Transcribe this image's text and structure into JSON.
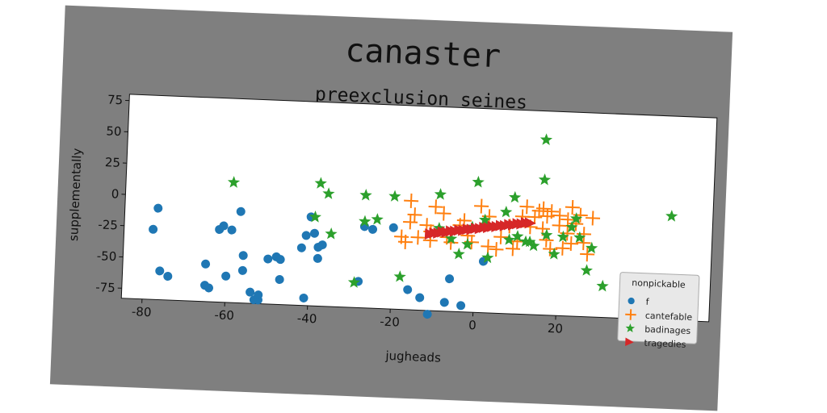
{
  "chart_data": {
    "type": "scatter",
    "title": "canaster",
    "subtitle": "preexclusion seines",
    "xlabel": "jugheads",
    "ylabel": "supplementally",
    "xlim": [
      -85,
      57
    ],
    "ylim": [
      -83,
      80
    ],
    "xticks": [
      -80,
      -60,
      -40,
      -20,
      0,
      20,
      40
    ],
    "yticks": [
      75,
      50,
      25,
      0,
      -25,
      -50,
      -75
    ],
    "grid": false,
    "legend": {
      "title": "nonpickable",
      "placement": "bottom-right"
    },
    "colors": {
      "f": "#1f77b4",
      "cantefable": "#ff7f0e",
      "badinages": "#2ca02c",
      "tragedies": "#d62728"
    },
    "series": [
      {
        "name": "f",
        "marker": "circle",
        "points": [
          [
            -77,
            -10
          ],
          [
            -78,
            -27
          ],
          [
            -76,
            -60
          ],
          [
            -74,
            -64
          ],
          [
            -65,
            -53
          ],
          [
            -65,
            -70
          ],
          [
            -64,
            -72
          ],
          [
            -62,
            -25
          ],
          [
            -61,
            -22
          ],
          [
            -60,
            -62
          ],
          [
            -59,
            -25
          ],
          [
            -57,
            -10
          ],
          [
            -56,
            -45
          ],
          [
            -56,
            -57
          ],
          [
            -54,
            -74
          ],
          [
            -53,
            -80
          ],
          [
            -52,
            -80
          ],
          [
            -52,
            -76
          ],
          [
            -50,
            -47
          ],
          [
            -48,
            -45
          ],
          [
            -47,
            -47
          ],
          [
            -47,
            -63
          ],
          [
            -42,
            -37
          ],
          [
            -41,
            -77
          ],
          [
            -41,
            -27
          ],
          [
            -40,
            -12
          ],
          [
            -39,
            -25
          ],
          [
            -38,
            -36
          ],
          [
            -38,
            -45
          ],
          [
            -37,
            -34
          ],
          [
            -28,
            -62
          ],
          [
            -27,
            -18
          ],
          [
            -25,
            -20
          ],
          [
            -20,
            -18
          ],
          [
            -16,
            -67
          ],
          [
            -13,
            -73
          ],
          [
            -11,
            -86
          ],
          [
            -7,
            -76
          ],
          [
            -6,
            -57
          ],
          [
            -3,
            -78
          ],
          [
            2,
            -42
          ]
        ]
      },
      {
        "name": "cantefable",
        "marker": "plus",
        "points": [
          [
            -12,
            -15
          ],
          [
            -14,
            -25
          ],
          [
            -11,
            -20
          ],
          [
            -11,
            -27
          ],
          [
            -8,
            -5
          ],
          [
            -7,
            -24
          ],
          [
            -6,
            -28
          ],
          [
            -4,
            -14
          ],
          [
            -3,
            -10
          ],
          [
            -2,
            -22
          ],
          [
            -1,
            -27
          ],
          [
            -18,
            -25
          ],
          [
            -17,
            -29
          ],
          [
            -16,
            -13
          ],
          [
            -15,
            -7
          ],
          [
            -16,
            4
          ],
          [
            -10,
            0
          ],
          [
            1,
            2
          ],
          [
            3,
            -6
          ],
          [
            3,
            -30
          ],
          [
            5,
            -32
          ],
          [
            6,
            -22
          ],
          [
            8,
            -13
          ],
          [
            9,
            -31
          ],
          [
            10,
            -25
          ],
          [
            11,
            -5
          ],
          [
            12,
            3
          ],
          [
            13,
            -13
          ],
          [
            14,
            -5
          ],
          [
            15,
            0
          ],
          [
            16,
            2
          ],
          [
            16,
            -14
          ],
          [
            17,
            -4
          ],
          [
            17,
            -23
          ],
          [
            18,
            -30
          ],
          [
            18,
            0
          ],
          [
            20,
            -3
          ],
          [
            20,
            -11
          ],
          [
            21,
            -29
          ],
          [
            22,
            -6
          ],
          [
            22,
            -17
          ],
          [
            23,
            -25
          ],
          [
            23,
            4
          ],
          [
            24,
            -9
          ],
          [
            25,
            -2
          ],
          [
            26,
            -17
          ],
          [
            26,
            -24
          ],
          [
            27,
            -33
          ],
          [
            28,
            -4
          ]
        ]
      },
      {
        "name": "badinages",
        "marker": "star",
        "points": [
          [
            -59,
            13
          ],
          [
            -38,
            15
          ],
          [
            -36,
            7
          ],
          [
            -39,
            -12
          ],
          [
            -35,
            -25
          ],
          [
            -29,
            -63
          ],
          [
            -27,
            7
          ],
          [
            -27,
            -14
          ],
          [
            -24,
            -12
          ],
          [
            -20,
            7
          ],
          [
            -18,
            -57
          ],
          [
            -9,
            -17
          ],
          [
            -9,
            10
          ],
          [
            -6,
            -25
          ],
          [
            -4,
            -37
          ],
          [
            -1,
            -15
          ],
          [
            -2,
            -29
          ],
          [
            0,
            21
          ],
          [
            2,
            -9
          ],
          [
            3,
            -39
          ],
          [
            7,
            -2
          ],
          [
            8,
            -24
          ],
          [
            9,
            10
          ],
          [
            10,
            -21
          ],
          [
            12,
            -25
          ],
          [
            13,
            -25
          ],
          [
            14,
            -28
          ],
          [
            16,
            57
          ],
          [
            16,
            25
          ],
          [
            17,
            -19
          ],
          [
            19,
            -34
          ],
          [
            21,
            -20
          ],
          [
            23,
            -12
          ],
          [
            24,
            -5
          ],
          [
            25,
            -20
          ],
          [
            27,
            -46
          ],
          [
            31,
            -58
          ],
          [
            46,
            -51
          ],
          [
            48,
            -74
          ],
          [
            50,
            -67
          ],
          [
            47,
            0
          ],
          [
            28,
            -28
          ]
        ]
      },
      {
        "name": "tragedies",
        "marker": "triangle-right",
        "points": [
          [
            -11,
            -22
          ],
          [
            -10,
            -21
          ],
          [
            -9,
            -21
          ],
          [
            -8,
            -20
          ],
          [
            -7,
            -20
          ],
          [
            -6,
            -19
          ],
          [
            -5,
            -19
          ],
          [
            -4,
            -18
          ],
          [
            -3,
            -18
          ],
          [
            -2,
            -17
          ],
          [
            -1,
            -17
          ],
          [
            0,
            -16
          ],
          [
            1,
            -16
          ],
          [
            2,
            -15
          ],
          [
            3,
            -15
          ],
          [
            4,
            -14
          ],
          [
            5,
            -14
          ],
          [
            6,
            -13
          ],
          [
            7,
            -13
          ],
          [
            8,
            -12
          ],
          [
            9,
            -12
          ],
          [
            10,
            -11
          ],
          [
            11,
            -11
          ],
          [
            12,
            -10
          ],
          [
            13,
            -10
          ]
        ]
      }
    ]
  }
}
